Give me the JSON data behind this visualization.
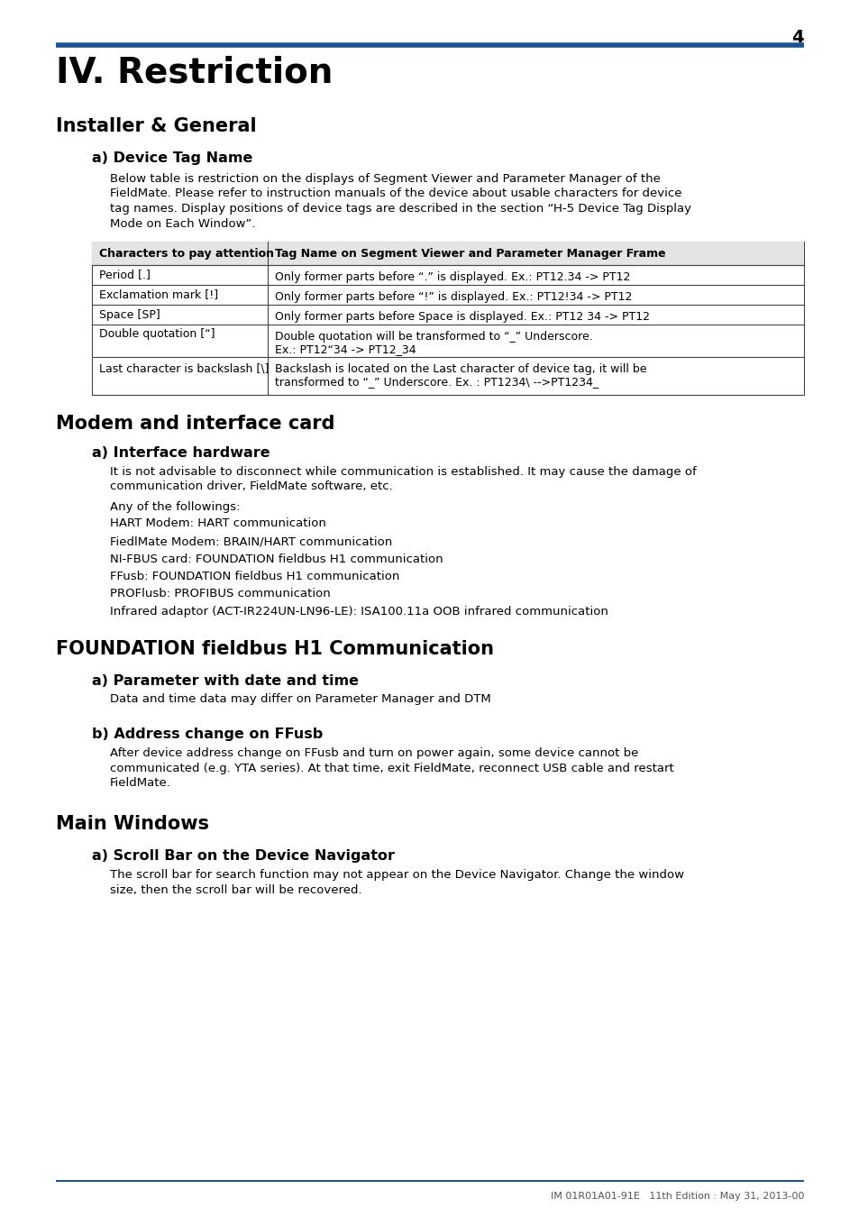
{
  "page_number": "4",
  "top_line_color": "#1a5296",
  "background_color": "#ffffff",
  "text_color": "#000000",
  "footer_text": "IM 01R01A01-91E   11th Edition : May 31, 2013-00",
  "footer_line_color": "#1a5296",
  "main_title": "IV. Restriction",
  "section1_title": "Installer & General",
  "subsection1a_title": "a) Device Tag Name",
  "para1_lines": [
    "Below table is restriction on the displays of Segment Viewer and Parameter Manager of the",
    "FieldMate. Please refer to instruction manuals of the device about usable characters for device",
    "tag names. Display positions of device tags are described in the section “H-5 Device Tag Display",
    "Mode on Each Window”."
  ],
  "table_header_col1": "Characters to pay attention",
  "table_header_col2": "Tag Name on Segment Viewer and Parameter Manager Frame",
  "table_rows": [
    [
      "Period [.]",
      "Only former parts before “.” is displayed. Ex.: PT12.34 -> PT12",
      1
    ],
    [
      "Exclamation mark [!]",
      "Only former parts before “!” is displayed. Ex.: PT12!34 -> PT12",
      1
    ],
    [
      "Space [SP]",
      "Only former parts before Space is displayed. Ex.: PT12 34 -> PT12",
      1
    ],
    [
      "Double quotation [“]",
      "Double quotation will be transformed to “_” Underscore.\nEx.: PT12“34 -> PT12_34",
      2
    ],
    [
      "Last character is backslash [\\]",
      "Backslash is located on the Last character of device tag, it will be\ntransformed to “_” Underscore. Ex. : PT1234\\ -->PT1234_",
      2
    ]
  ],
  "section2_title": "Modem and interface card",
  "subsection2a_title": "a) Interface hardware",
  "para2_lines": [
    "It is not advisable to disconnect while communication is established. It may cause the damage of",
    "communication driver, FieldMate software, etc."
  ],
  "para3": "Any of the followings:",
  "list_items": [
    "HART Modem: HART communication",
    "FiedlMate Modem: BRAIN/HART communication",
    "NI-FBUS card: FOUNDATION fieldbus H1 communication",
    "FFusb: FOUNDATION fieldbus H1 communication",
    "PROFlusb: PROFIBUS communication",
    "Infrared adaptor (ACT-IR224UN-LN96-LE): ISA100.11a OOB infrared communication"
  ],
  "section3_title": "FOUNDATION fieldbus H1 Communication",
  "subsection3a_title": "a) Parameter with date and time",
  "para4": "Data and time data may differ on Parameter Manager and DTM",
  "subsection3b_title": "b) Address change on FFusb",
  "para5_lines": [
    "After device address change on FFusb and turn on power again, some device cannot be",
    "communicated (e.g. YTA series). At that time, exit FieldMate, reconnect USB cable and restart",
    "FieldMate."
  ],
  "section4_title": "Main Windows",
  "subsection4a_title": "a) Scroll Bar on the Device Navigator",
  "para6_lines": [
    "The scroll bar for search function may not appear on the Device Navigator. Change the window",
    "size, then the scroll bar will be recovered."
  ]
}
